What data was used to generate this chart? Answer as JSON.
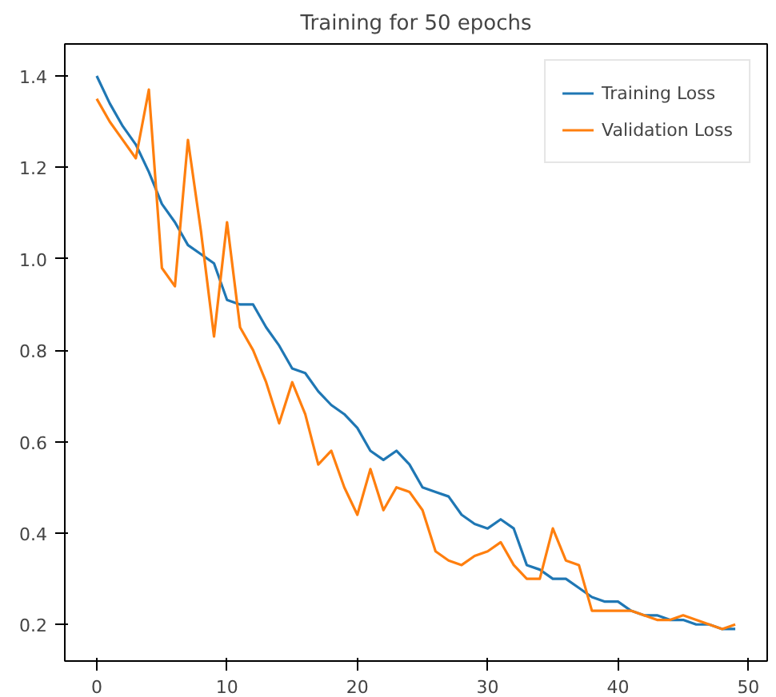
{
  "chart_data": {
    "type": "line",
    "title": "Training for 50 epochs",
    "x": [
      0,
      1,
      2,
      3,
      4,
      5,
      6,
      7,
      8,
      9,
      10,
      11,
      12,
      13,
      14,
      15,
      16,
      17,
      18,
      19,
      20,
      21,
      22,
      23,
      24,
      25,
      26,
      27,
      28,
      29,
      30,
      31,
      32,
      33,
      34,
      35,
      36,
      37,
      38,
      39,
      40,
      41,
      42,
      43,
      44,
      45,
      46,
      47,
      48,
      49
    ],
    "series": [
      {
        "name": "Training Loss",
        "color": "#1f77b4",
        "values": [
          1.4,
          1.34,
          1.29,
          1.25,
          1.19,
          1.12,
          1.08,
          1.03,
          1.01,
          0.99,
          0.91,
          0.9,
          0.9,
          0.85,
          0.81,
          0.76,
          0.75,
          0.71,
          0.68,
          0.66,
          0.63,
          0.58,
          0.56,
          0.58,
          0.55,
          0.5,
          0.49,
          0.48,
          0.44,
          0.42,
          0.41,
          0.43,
          0.41,
          0.33,
          0.32,
          0.3,
          0.3,
          0.28,
          0.26,
          0.25,
          0.25,
          0.23,
          0.22,
          0.22,
          0.21,
          0.21,
          0.2,
          0.2,
          0.19,
          0.19
        ]
      },
      {
        "name": "Validation Loss",
        "color": "#ff7f0e",
        "values": [
          1.35,
          1.3,
          1.26,
          1.22,
          1.37,
          0.98,
          0.94,
          1.26,
          1.06,
          0.83,
          1.08,
          0.85,
          0.8,
          0.73,
          0.64,
          0.73,
          0.66,
          0.55,
          0.58,
          0.5,
          0.44,
          0.54,
          0.45,
          0.5,
          0.49,
          0.45,
          0.36,
          0.34,
          0.33,
          0.35,
          0.36,
          0.38,
          0.33,
          0.3,
          0.3,
          0.41,
          0.34,
          0.33,
          0.23,
          0.23,
          0.23,
          0.23,
          0.22,
          0.21,
          0.21,
          0.22,
          0.21,
          0.2,
          0.19,
          0.2
        ]
      }
    ],
    "xlim": [
      -2.45,
      51.45
    ],
    "ylim": [
      0.12,
      1.47
    ],
    "xticks": [
      0,
      10,
      20,
      30,
      40,
      50
    ],
    "yticks": [
      {
        "value": 0.2,
        "label": "0.2"
      },
      {
        "value": 0.4,
        "label": "0.4"
      },
      {
        "value": 0.6,
        "label": "0.6"
      },
      {
        "value": 0.8,
        "label": "0.8"
      },
      {
        "value": 1.0,
        "label": "1.0"
      },
      {
        "value": 1.2,
        "label": "1.2"
      },
      {
        "value": 1.4,
        "label": "1.4"
      }
    ],
    "grid": false,
    "legend": "top right"
  }
}
